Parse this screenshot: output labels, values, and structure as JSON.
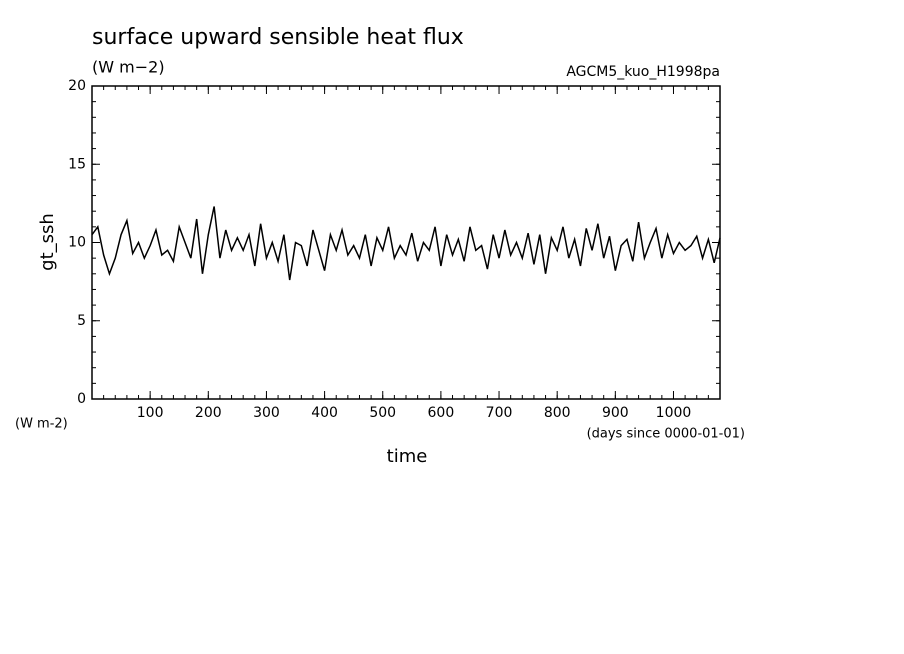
{
  "chart_data": {
    "type": "line",
    "title": "surface upward sensible heat flux",
    "subtitle": "(W m−2)",
    "annotation": "AGCM5_kuo_H1998pa",
    "ylabel": "gt_ssh",
    "yunit": "(W m-2)",
    "xlabel": "time",
    "xunit": "(days since 0000-01-01)",
    "x": [
      0,
      10,
      20,
      30,
      40,
      50,
      60,
      70,
      80,
      90,
      100,
      110,
      120,
      130,
      140,
      150,
      160,
      170,
      180,
      190,
      200,
      210,
      220,
      230,
      240,
      250,
      260,
      270,
      280,
      290,
      300,
      310,
      320,
      330,
      340,
      350,
      360,
      370,
      380,
      390,
      400,
      410,
      420,
      430,
      440,
      450,
      460,
      470,
      480,
      490,
      500,
      510,
      520,
      530,
      540,
      550,
      560,
      570,
      580,
      590,
      600,
      610,
      620,
      630,
      640,
      650,
      660,
      670,
      680,
      690,
      700,
      710,
      720,
      730,
      740,
      750,
      760,
      770,
      780,
      790,
      800,
      810,
      820,
      830,
      840,
      850,
      860,
      870,
      880,
      890,
      900,
      910,
      920,
      930,
      940,
      950,
      960,
      970,
      980,
      990,
      1000,
      1010,
      1020,
      1030,
      1040,
      1050,
      1060,
      1070,
      1080
    ],
    "series": [
      {
        "name": "gt_ssh",
        "color": "#000000",
        "values": [
          10.5,
          11,
          9.2,
          8,
          9,
          10.5,
          11.4,
          9.3,
          10,
          9,
          9.8,
          10.8,
          9.2,
          9.5,
          8.8,
          11,
          10,
          9,
          11.5,
          8,
          10.5,
          12.3,
          9,
          10.8,
          9.5,
          10.3,
          9.5,
          10.5,
          8.5,
          11.2,
          9,
          10,
          8.8,
          10.5,
          7.6,
          10,
          9.8,
          8.5,
          10.8,
          9.5,
          8.2,
          10.5,
          9.5,
          10.8,
          9.2,
          9.8,
          9,
          10.5,
          8.5,
          10.3,
          9.5,
          11,
          9,
          9.8,
          9.2,
          10.6,
          8.8,
          10,
          9.5,
          11,
          8.5,
          10.5,
          9.2,
          10.2,
          8.8,
          11,
          9.5,
          9.8,
          8.3,
          10.5,
          9,
          10.8,
          9.2,
          10,
          9,
          10.6,
          8.6,
          10.5,
          8,
          10.3,
          9.5,
          11,
          9,
          10.2,
          8.5,
          10.9,
          9.5,
          11.2,
          9,
          10.4,
          8.2,
          9.8,
          10.2,
          8.8,
          11.3,
          9,
          10,
          10.9,
          9,
          10.5,
          9.3,
          10,
          9.5,
          9.8,
          10.4,
          9,
          10.2,
          8.7,
          10.3
        ]
      }
    ],
    "xlim": [
      0,
      1080
    ],
    "ylim": [
      0,
      20
    ],
    "xticks": [
      100,
      200,
      300,
      400,
      500,
      600,
      700,
      800,
      900,
      1000
    ],
    "yticks": [
      0,
      5,
      10,
      15,
      20
    ],
    "xminor": 20,
    "yminor": 1
  }
}
